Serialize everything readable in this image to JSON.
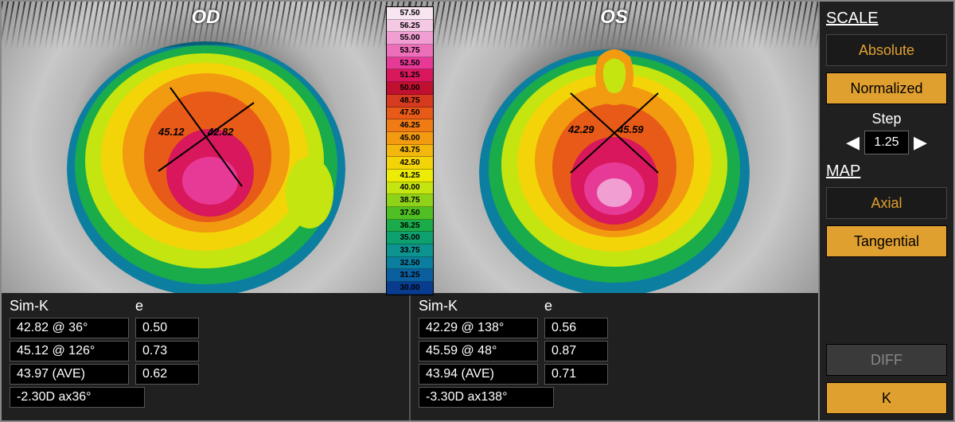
{
  "legend": {
    "values": [
      "57.50",
      "56.25",
      "55.00",
      "53.75",
      "52.50",
      "51.25",
      "50.00",
      "48.75",
      "47.50",
      "46.25",
      "45.00",
      "43.75",
      "42.50",
      "41.25",
      "40.00",
      "38.75",
      "37.50",
      "36.25",
      "35.00",
      "33.75",
      "32.50",
      "31.25",
      "30.00"
    ],
    "colors": [
      "#f7e5f1",
      "#f4c9e4",
      "#f19ed2",
      "#ed6fba",
      "#e73a97",
      "#d9175c",
      "#c01030",
      "#d63a1f",
      "#e85a17",
      "#f07a14",
      "#f29a10",
      "#f3b80d",
      "#f3d409",
      "#ecec06",
      "#c4e510",
      "#8fd21a",
      "#4fbf24",
      "#1aab4b",
      "#0ea06e",
      "#0d9490",
      "#0c7fa0",
      "#0b5f9e",
      "#093b8e"
    ]
  },
  "eyes": {
    "od": {
      "label": "OD",
      "k1": "45.12",
      "k2": "42.82",
      "cross_angle_flat": 36,
      "cross_angle_steep": 126,
      "topo_colors": {
        "outer": "#0c7fa0",
        "ring1": "#1aab4b",
        "ring2": "#c4e510",
        "ring3": "#f3d409",
        "ring4": "#f29a10",
        "ring5": "#e85a17",
        "hot": "#e73a97",
        "hottest": "#ed6fba"
      }
    },
    "os": {
      "label": "OS",
      "k1": "42.29",
      "k2": "45.59",
      "cross_angle_flat": 138,
      "cross_angle_steep": 48,
      "topo_colors": {
        "outer": "#0c7fa0",
        "ring1": "#1aab4b",
        "ring2": "#c4e510",
        "ring3": "#f3d409",
        "ring4": "#f29a10",
        "ring5": "#e85a17",
        "hot": "#e73a97",
        "hottest": "#f19ed2"
      }
    }
  },
  "tables": {
    "od": {
      "head1": "Sim-K",
      "head2": "e",
      "rows": [
        {
          "k": "42.82  @ 36°",
          "e": "0.50"
        },
        {
          "k": "45.12  @ 126°",
          "e": "0.73"
        },
        {
          "k": "43.97 (AVE)",
          "e": "0.62"
        }
      ],
      "astig": "-2.30D ax36°"
    },
    "os": {
      "head1": "Sim-K",
      "head2": "e",
      "rows": [
        {
          "k": "42.29  @ 138°",
          "e": "0.56"
        },
        {
          "k": "45.59  @ 48°",
          "e": "0.87"
        },
        {
          "k": "43.94 (AVE)",
          "e": "0.71"
        }
      ],
      "astig": "-3.30D ax138°"
    }
  },
  "sidebar": {
    "scale_label": "SCALE",
    "absolute": "Absolute",
    "normalized": "Normalized",
    "step_label": "Step",
    "step_value": "1.25",
    "map_label": "MAP",
    "axial": "Axial",
    "tangential": "Tangential",
    "diff": "DIFF",
    "k": "K",
    "active_scale": "normalized",
    "active_map": "tangential"
  },
  "style": {
    "accent": "#e0a030",
    "bg": "#1a1a1a",
    "panel": "#202020",
    "text": "#ffffff"
  }
}
